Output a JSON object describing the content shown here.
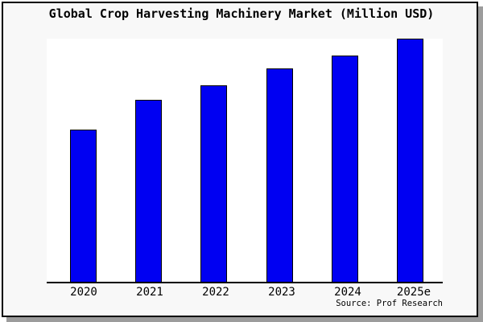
{
  "window": {
    "background": "#ffffff"
  },
  "panel": {
    "background": "#f8f8f8",
    "border_color": "#000000",
    "shadow_color": "#9c9c9c"
  },
  "chart_data": {
    "type": "bar",
    "title": "Global Crop Harvesting Machinery Market (Million USD)",
    "categories": [
      "2020",
      "2021",
      "2022",
      "2023",
      "2024",
      "2025e"
    ],
    "values_relative": [
      62.5,
      74.8,
      80.9,
      87.7,
      92.9,
      100
    ],
    "ylim": [
      0,
      100
    ],
    "xlabel": "",
    "ylabel": "",
    "y_axis_shown": false,
    "gridlines": false,
    "legend": false,
    "bar_color": "#0000f2",
    "bar_edge_color": "#000000",
    "plot_background": "#ffffff",
    "note": "No y-axis scale or data labels shown; values are relative bar heights normalized to 2025e = 100."
  },
  "footer": {
    "source_label": "Source: Prof Research"
  }
}
